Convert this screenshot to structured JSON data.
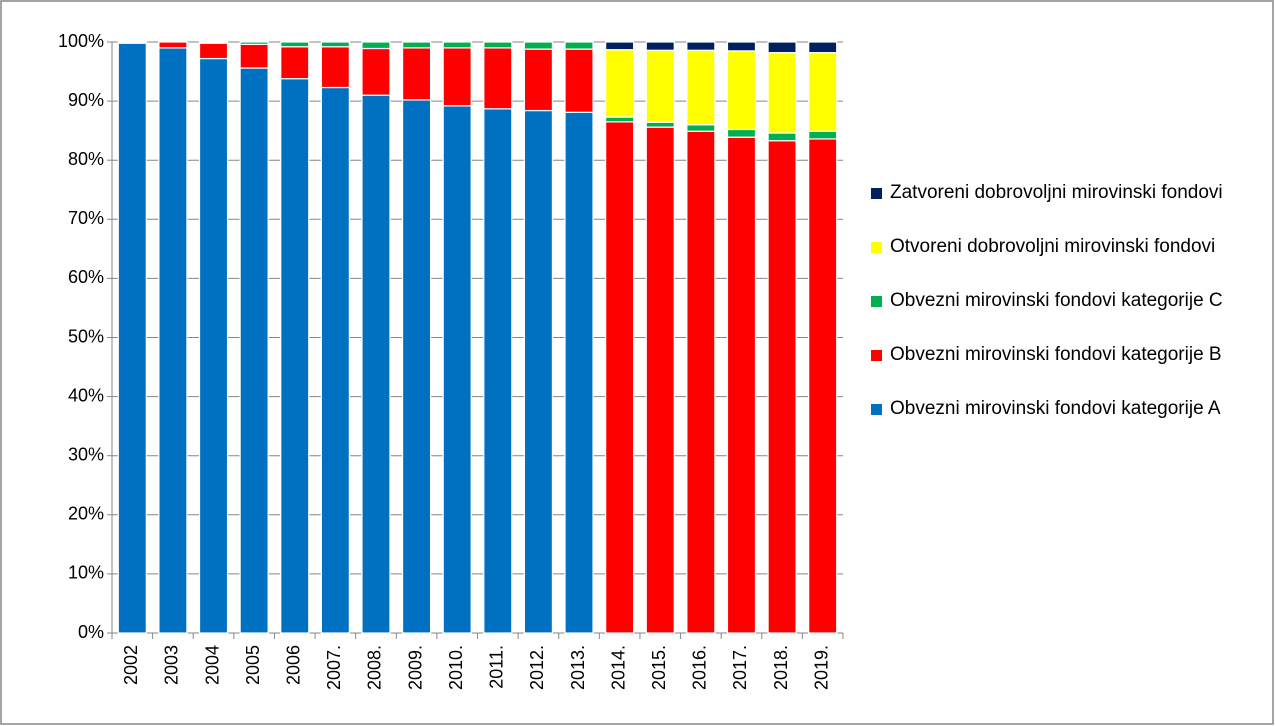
{
  "chart_data": {
    "type": "stacked_bar",
    "categories": [
      "2002",
      "2003",
      "2004",
      "2005",
      "2006",
      "2007.",
      "2008.",
      "2009.",
      "2010.",
      "2011.",
      "2012.",
      "2013.",
      "2014.",
      "2015.",
      "2016.",
      "2017.",
      "2018.",
      "2019."
    ],
    "series": [
      {
        "name": "Obvezni mirovinski fondovi kategorije A",
        "color": "#0070c0",
        "values": [
          99.8,
          99.0,
          97.2,
          95.6,
          93.8,
          92.3,
          91.0,
          90.2,
          89.2,
          88.7,
          88.4,
          88.1,
          0,
          0,
          0,
          0,
          0,
          0
        ]
      },
      {
        "name": "Obvezni mirovinski fondovi kategorije B",
        "color": "#ff0000",
        "values": [
          0.2,
          1.0,
          2.6,
          4.0,
          5.4,
          6.9,
          7.9,
          8.8,
          9.8,
          10.3,
          10.4,
          10.7,
          86.5,
          85.6,
          84.9,
          83.9,
          83.3,
          83.6
        ]
      },
      {
        "name": "Obvezni mirovinski fondovi kategorije C",
        "color": "#00b050",
        "values": [
          0,
          0,
          0.2,
          0.4,
          0.8,
          0.8,
          1.1,
          1.0,
          1.0,
          1.0,
          1.2,
          1.2,
          0.8,
          0.8,
          1.1,
          1.3,
          1.3,
          1.3
        ]
      },
      {
        "name": "Otvoreni dobrovoljni mirovinski fondovi",
        "color": "#ffff00",
        "values": [
          0,
          0,
          0,
          0,
          0,
          0,
          0,
          0,
          0,
          0,
          0,
          0,
          11.4,
          12.2,
          12.6,
          13.3,
          13.6,
          13.3
        ]
      },
      {
        "name": "Zatvoreni dobrovoljni mirovinski fondovi",
        "color": "#002060",
        "values": [
          0,
          0,
          0,
          0,
          0,
          0,
          0,
          0,
          0,
          0,
          0,
          0,
          1.3,
          1.4,
          1.4,
          1.5,
          1.8,
          1.8
        ]
      }
    ],
    "ylim": [
      0,
      100
    ],
    "yticks": [
      {
        "value": 0,
        "label": "0%"
      },
      {
        "value": 10,
        "label": "10%"
      },
      {
        "value": 20,
        "label": "20%"
      },
      {
        "value": 30,
        "label": "30%"
      },
      {
        "value": 40,
        "label": "40%"
      },
      {
        "value": 50,
        "label": "50%"
      },
      {
        "value": 60,
        "label": "60%"
      },
      {
        "value": 70,
        "label": "70%"
      },
      {
        "value": 80,
        "label": "80%"
      },
      {
        "value": 90,
        "label": "90%"
      },
      {
        "value": 100,
        "label": "100%"
      }
    ],
    "grid": true,
    "legend": "right"
  }
}
